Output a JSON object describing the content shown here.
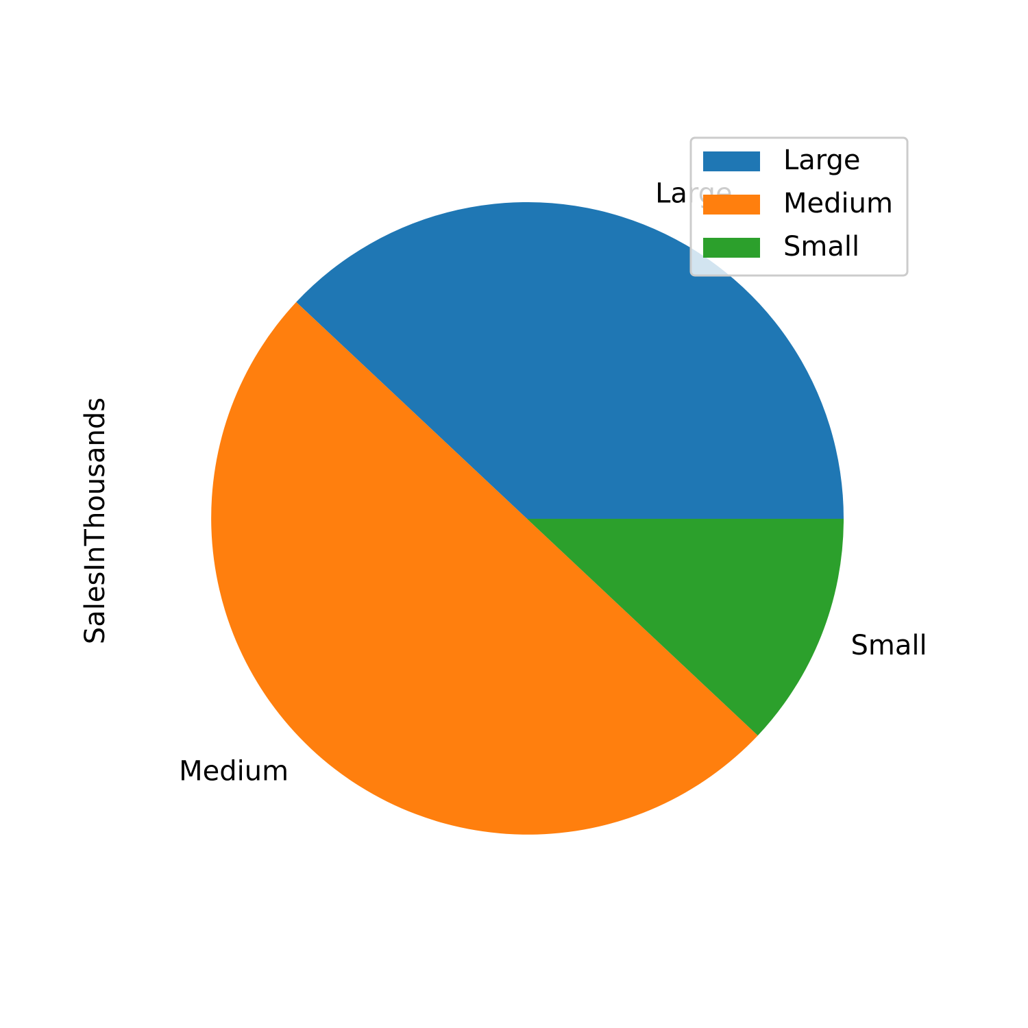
{
  "chart_data": {
    "type": "pie",
    "title": "",
    "ylabel": "SalesInThousands",
    "categories": [
      "Large",
      "Medium",
      "Small"
    ],
    "values": [
      38,
      50,
      12
    ],
    "colors": [
      "#1f77b4",
      "#ff7f0e",
      "#2ca02c"
    ],
    "start_angle_deg": 0,
    "direction": "counterclockwise",
    "legend": {
      "position": "top-right",
      "entries": [
        "Large",
        "Medium",
        "Small"
      ]
    }
  }
}
